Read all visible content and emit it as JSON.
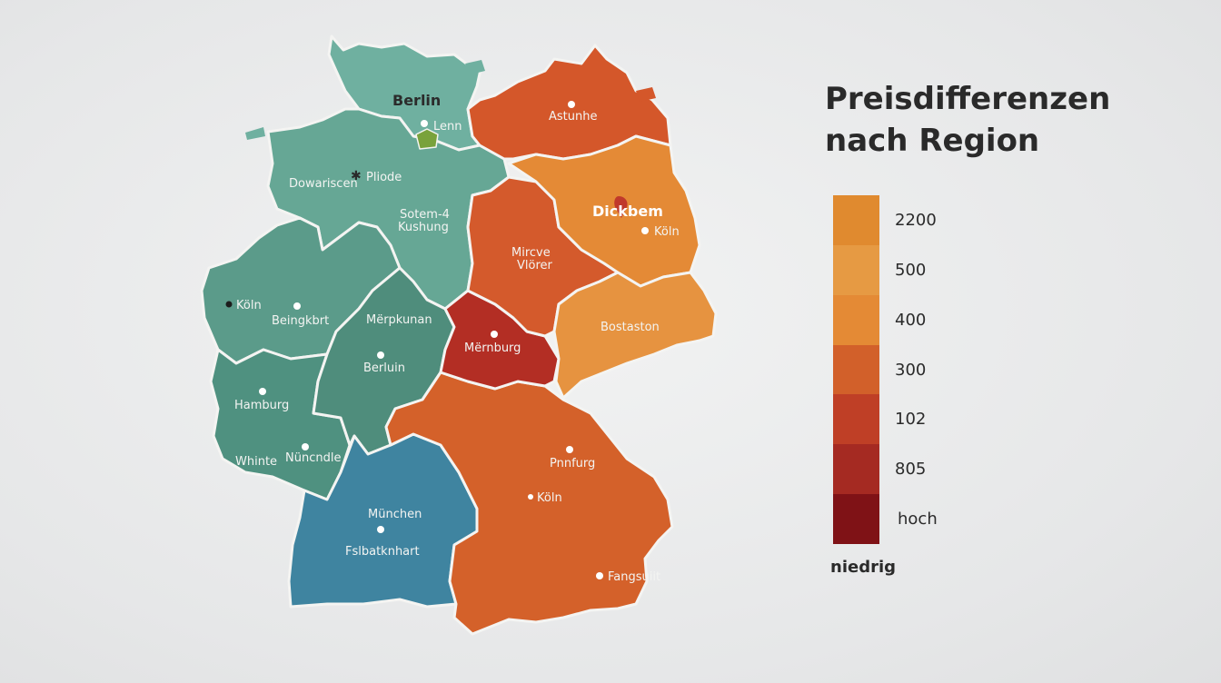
{
  "title": {
    "line1": "Preisdifferenzen",
    "line2": "nach Region"
  },
  "legend": {
    "swatches": [
      "#e08a2f",
      "#e69a43",
      "#e48a35",
      "#d2602a",
      "#bf3f26",
      "#a52a22",
      "#7f1216"
    ],
    "ticks": [
      "2200",
      "500",
      "400",
      "300",
      "102",
      "805",
      "hoch"
    ],
    "low_label": "niedrig"
  },
  "regions": [
    {
      "id": "nord",
      "color": "#6fb0a0"
    },
    {
      "id": "west-nord",
      "color": "#66a795"
    },
    {
      "id": "west-mitte",
      "color": "#5b9b8a"
    },
    {
      "id": "west-sued",
      "color": "#4f9180"
    },
    {
      "id": "hessen",
      "color": "#4f8d7c"
    },
    {
      "id": "baden",
      "color": "#3f84a0"
    },
    {
      "id": "bayern",
      "color": "#d4612a"
    },
    {
      "id": "thueringen",
      "color": "#b32e24"
    },
    {
      "id": "sachsen-anhalt",
      "color": "#d45a2c"
    },
    {
      "id": "mecklenburg",
      "color": "#d4572a"
    },
    {
      "id": "brandenburg",
      "color": "#e48a36"
    },
    {
      "id": "sachsen",
      "color": "#e69340"
    },
    {
      "id": "enclave",
      "color": "#79a23c"
    }
  ],
  "labels": {
    "berlin_top": "Berlin",
    "lenn": "Lenn",
    "pliode": "Pliode",
    "dowariscen": "Dowariscen",
    "sotem": "Sotem-4",
    "kushung": "Kushung",
    "asturne": "Astunhe",
    "dickbem": "Dickbem",
    "koeln_ne": "Köln",
    "mircve": "Mircve",
    "vlorer": "Vlörer",
    "bostaston": "Bostaston",
    "koeln_w": "Köln",
    "beingkbrt": "Beingkbrt",
    "merpkunan": "Mërpkunan",
    "mernburg": "Mërnburg",
    "berluin": "Berluin",
    "hamburg": "Hamburg",
    "whinte": "Whinte",
    "nuncndle": "Nüncndle",
    "pnnfurg": "Pnnfurg",
    "koeln_s": "Köln",
    "muenchen": "München",
    "fslbatkhart": "Fslbatknhart",
    "fangsuuit": "Fangsuiit"
  }
}
